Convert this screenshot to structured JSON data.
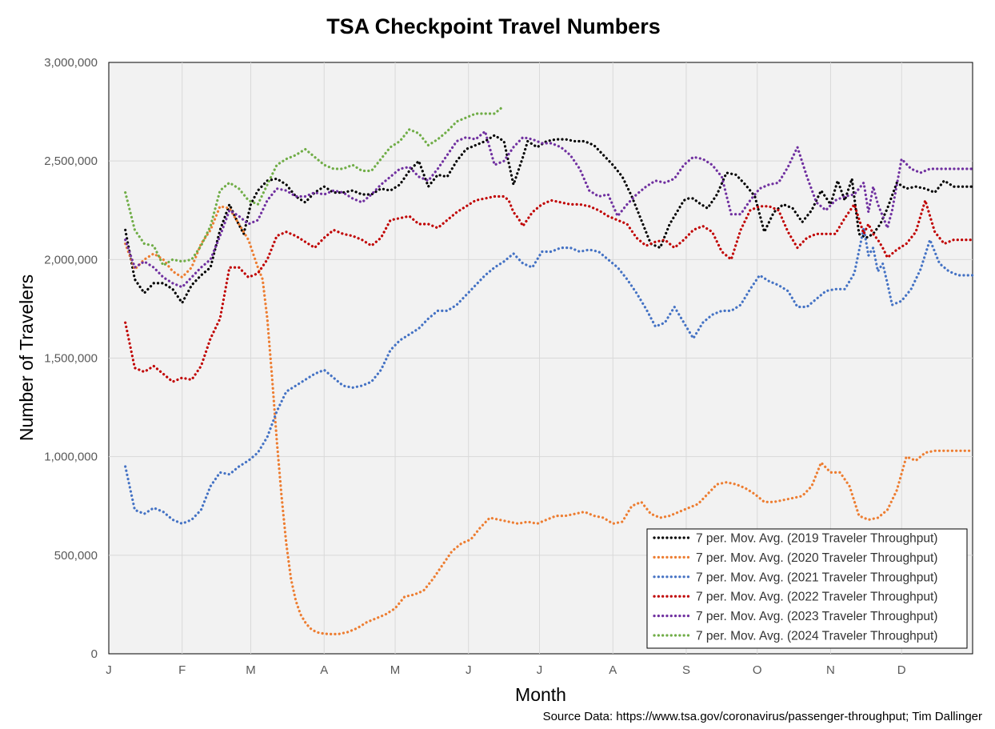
{
  "source_note": "Source Data:  https://www.tsa.gov/coronavirus/passenger-throughput; Tim Dallinger",
  "chart_data": {
    "type": "line",
    "title": "TSA Checkpoint Travel Numbers",
    "xlabel": "Month",
    "ylabel": "Number of Travelers",
    "xlim": [
      1,
      366
    ],
    "ylim": [
      0,
      3000000
    ],
    "y_ticks": [
      0,
      500000,
      1000000,
      1500000,
      2000000,
      2500000,
      3000000
    ],
    "y_tick_labels": [
      "0",
      "500,000",
      "1,000,000",
      "1,500,000",
      "2,000,000",
      "2,500,000",
      "3,000,000"
    ],
    "x_ticks": [
      1,
      32,
      61,
      92,
      122,
      153,
      183,
      214,
      245,
      275,
      306,
      336
    ],
    "x_tick_labels": [
      "J",
      "F",
      "M",
      "A",
      "M",
      "J",
      "J",
      "A",
      "S",
      "O",
      "N",
      "D"
    ],
    "grid": true,
    "legend_position": "bottom-right",
    "series": [
      {
        "name": "7 per. Mov. Avg. (2019 Traveler Throughput)",
        "color": "#000000",
        "x": [
          8,
          12,
          16,
          20,
          24,
          28,
          32,
          36,
          40,
          44,
          48,
          52,
          55,
          58,
          61,
          64,
          68,
          72,
          76,
          80,
          84,
          88,
          92,
          96,
          100,
          104,
          108,
          112,
          116,
          120,
          124,
          128,
          132,
          136,
          140,
          144,
          148,
          152,
          156,
          160,
          164,
          168,
          172,
          176,
          178,
          182,
          186,
          190,
          194,
          198,
          202,
          206,
          210,
          214,
          218,
          222,
          226,
          230,
          234,
          238,
          242,
          244,
          246,
          248,
          250,
          254,
          258,
          262,
          266,
          270,
          274,
          278,
          282,
          286,
          290,
          294,
          298,
          302,
          306,
          309,
          312,
          315,
          318,
          321,
          324,
          327,
          330,
          334,
          338,
          342,
          346,
          350,
          354,
          358,
          362,
          366
        ],
        "y": [
          2150000,
          1900000,
          1830000,
          1880000,
          1880000,
          1850000,
          1780000,
          1870000,
          1920000,
          1960000,
          2150000,
          2280000,
          2200000,
          2130000,
          2280000,
          2350000,
          2400000,
          2410000,
          2380000,
          2320000,
          2290000,
          2340000,
          2370000,
          2340000,
          2340000,
          2350000,
          2330000,
          2330000,
          2360000,
          2350000,
          2380000,
          2450000,
          2500000,
          2370000,
          2430000,
          2420000,
          2500000,
          2560000,
          2580000,
          2600000,
          2630000,
          2600000,
          2380000,
          2520000,
          2600000,
          2570000,
          2600000,
          2610000,
          2610000,
          2600000,
          2600000,
          2580000,
          2530000,
          2480000,
          2420000,
          2320000,
          2200000,
          2080000,
          2060000,
          2180000,
          2260000,
          2300000,
          2310000,
          2310000,
          2290000,
          2260000,
          2330000,
          2440000,
          2430000,
          2380000,
          2320000,
          2140000,
          2240000,
          2280000,
          2260000,
          2190000,
          2250000,
          2350000,
          2280000,
          2400000,
          2300000,
          2410000,
          2130000,
          2110000,
          2130000,
          2180000,
          2260000,
          2390000,
          2360000,
          2370000,
          2360000,
          2340000,
          2400000,
          2370000,
          2370000,
          2370000
        ]
      },
      {
        "name": "7 per. Mov. Avg. (2020 Traveler Throughput)",
        "color": "#ED7D31",
        "x": [
          8,
          12,
          16,
          20,
          24,
          28,
          32,
          36,
          40,
          44,
          48,
          52,
          56,
          60,
          64,
          66,
          68,
          70,
          72,
          74,
          76,
          78,
          80,
          82,
          84,
          86,
          88,
          90,
          94,
          98,
          102,
          106,
          110,
          114,
          118,
          122,
          126,
          130,
          134,
          138,
          142,
          146,
          150,
          154,
          158,
          162,
          166,
          170,
          174,
          178,
          182,
          186,
          190,
          194,
          198,
          202,
          206,
          210,
          214,
          218,
          222,
          226,
          230,
          234,
          238,
          242,
          246,
          250,
          254,
          258,
          262,
          266,
          270,
          274,
          278,
          282,
          286,
          290,
          294,
          298,
          302,
          306,
          310,
          314,
          318,
          322,
          326,
          330,
          334,
          338,
          342,
          346,
          350,
          354,
          358,
          362,
          366
        ],
        "y": [
          2080000,
          1950000,
          2000000,
          2030000,
          2000000,
          1940000,
          1910000,
          1960000,
          2080000,
          2150000,
          2270000,
          2260000,
          2180000,
          2100000,
          1960000,
          1900000,
          1700000,
          1400000,
          1080000,
          800000,
          560000,
          380000,
          270000,
          200000,
          160000,
          130000,
          115000,
          105000,
          100000,
          100000,
          110000,
          130000,
          160000,
          180000,
          200000,
          230000,
          290000,
          300000,
          320000,
          380000,
          450000,
          520000,
          560000,
          580000,
          640000,
          690000,
          680000,
          670000,
          660000,
          670000,
          660000,
          680000,
          700000,
          700000,
          710000,
          720000,
          700000,
          690000,
          660000,
          670000,
          750000,
          770000,
          710000,
          690000,
          700000,
          720000,
          740000,
          760000,
          810000,
          860000,
          870000,
          860000,
          840000,
          810000,
          770000,
          770000,
          780000,
          790000,
          800000,
          850000,
          970000,
          920000,
          920000,
          850000,
          700000,
          680000,
          690000,
          730000,
          830000,
          1000000,
          980000,
          1020000,
          1030000,
          1030000,
          1030000,
          1030000,
          1030000
        ]
      },
      {
        "name": "7 per. Mov. Avg. (2021 Traveler Throughput)",
        "color": "#4472C4",
        "x": [
          8,
          12,
          16,
          20,
          24,
          28,
          32,
          36,
          40,
          44,
          48,
          52,
          56,
          60,
          64,
          68,
          72,
          76,
          80,
          84,
          88,
          92,
          96,
          100,
          104,
          108,
          112,
          116,
          120,
          124,
          128,
          132,
          136,
          140,
          144,
          148,
          152,
          156,
          160,
          164,
          168,
          172,
          176,
          180,
          184,
          188,
          192,
          196,
          200,
          204,
          208,
          212,
          216,
          220,
          224,
          228,
          232,
          236,
          240,
          244,
          248,
          252,
          256,
          260,
          264,
          268,
          272,
          276,
          280,
          284,
          288,
          292,
          296,
          300,
          304,
          308,
          312,
          316,
          320,
          322,
          324,
          326,
          328,
          330,
          332,
          334,
          336,
          340,
          344,
          348,
          352,
          356,
          360,
          364,
          366
        ],
        "y": [
          950000,
          730000,
          710000,
          740000,
          720000,
          680000,
          660000,
          680000,
          730000,
          850000,
          920000,
          910000,
          950000,
          980000,
          1020000,
          1100000,
          1230000,
          1330000,
          1360000,
          1390000,
          1420000,
          1440000,
          1400000,
          1360000,
          1350000,
          1360000,
          1380000,
          1440000,
          1540000,
          1590000,
          1620000,
          1650000,
          1700000,
          1740000,
          1740000,
          1770000,
          1820000,
          1870000,
          1920000,
          1960000,
          1990000,
          2030000,
          1980000,
          1960000,
          2040000,
          2040000,
          2060000,
          2060000,
          2040000,
          2050000,
          2040000,
          2000000,
          1960000,
          1900000,
          1830000,
          1750000,
          1660000,
          1680000,
          1760000,
          1680000,
          1600000,
          1680000,
          1720000,
          1740000,
          1740000,
          1770000,
          1850000,
          1920000,
          1890000,
          1870000,
          1840000,
          1760000,
          1760000,
          1800000,
          1840000,
          1850000,
          1850000,
          1930000,
          2160000,
          2020000,
          2060000,
          1940000,
          1980000,
          1880000,
          1770000,
          1780000,
          1790000,
          1850000,
          1950000,
          2100000,
          1980000,
          1940000,
          1920000,
          1920000,
          1920000
        ]
      },
      {
        "name": "7 per. Mov. Avg. (2022 Traveler Throughput)",
        "color": "#C00000",
        "x": [
          8,
          12,
          16,
          20,
          24,
          28,
          32,
          36,
          40,
          44,
          48,
          52,
          56,
          60,
          64,
          68,
          72,
          76,
          80,
          84,
          88,
          92,
          96,
          100,
          104,
          108,
          112,
          116,
          120,
          124,
          128,
          132,
          136,
          140,
          144,
          148,
          152,
          156,
          160,
          164,
          168,
          170,
          172,
          174,
          176,
          180,
          184,
          188,
          192,
          196,
          200,
          204,
          208,
          212,
          216,
          220,
          224,
          228,
          232,
          236,
          240,
          244,
          248,
          252,
          256,
          260,
          264,
          268,
          272,
          276,
          280,
          284,
          288,
          292,
          296,
          300,
          304,
          308,
          312,
          316,
          320,
          322,
          324,
          326,
          328,
          330,
          334,
          338,
          342,
          346,
          350,
          354,
          358,
          362,
          366
        ],
        "y": [
          1680000,
          1450000,
          1430000,
          1460000,
          1420000,
          1380000,
          1400000,
          1390000,
          1460000,
          1600000,
          1700000,
          1960000,
          1960000,
          1910000,
          1930000,
          2000000,
          2120000,
          2140000,
          2120000,
          2090000,
          2060000,
          2110000,
          2150000,
          2130000,
          2120000,
          2100000,
          2070000,
          2110000,
          2200000,
          2210000,
          2220000,
          2180000,
          2180000,
          2160000,
          2200000,
          2240000,
          2270000,
          2300000,
          2310000,
          2320000,
          2320000,
          2300000,
          2240000,
          2210000,
          2170000,
          2240000,
          2280000,
          2300000,
          2290000,
          2280000,
          2280000,
          2270000,
          2250000,
          2220000,
          2200000,
          2180000,
          2110000,
          2070000,
          2090000,
          2100000,
          2060000,
          2100000,
          2150000,
          2170000,
          2140000,
          2040000,
          2000000,
          2150000,
          2250000,
          2270000,
          2270000,
          2250000,
          2140000,
          2060000,
          2110000,
          2130000,
          2130000,
          2130000,
          2210000,
          2280000,
          2130000,
          2180000,
          2130000,
          2100000,
          2060000,
          2010000,
          2050000,
          2080000,
          2140000,
          2300000,
          2140000,
          2080000,
          2100000,
          2100000,
          2100000
        ]
      },
      {
        "name": "7 per. Mov. Avg. (2023 Traveler Throughput)",
        "color": "#7030A0",
        "x": [
          8,
          12,
          16,
          20,
          24,
          28,
          32,
          36,
          40,
          44,
          48,
          52,
          56,
          60,
          64,
          68,
          72,
          76,
          80,
          84,
          88,
          92,
          96,
          100,
          104,
          108,
          112,
          116,
          120,
          124,
          128,
          132,
          136,
          140,
          144,
          148,
          152,
          156,
          160,
          164,
          168,
          172,
          176,
          180,
          184,
          188,
          192,
          196,
          200,
          204,
          208,
          212,
          216,
          220,
          224,
          228,
          232,
          236,
          240,
          244,
          248,
          252,
          256,
          260,
          264,
          268,
          272,
          276,
          280,
          284,
          288,
          292,
          296,
          300,
          304,
          308,
          312,
          316,
          320,
          322,
          324,
          326,
          328,
          330,
          332,
          334,
          336,
          340,
          344,
          348,
          352,
          356,
          360,
          364,
          366
        ],
        "y": [
          2100000,
          1960000,
          1990000,
          1960000,
          1910000,
          1880000,
          1860000,
          1910000,
          1960000,
          2000000,
          2120000,
          2250000,
          2220000,
          2180000,
          2200000,
          2300000,
          2360000,
          2350000,
          2320000,
          2320000,
          2340000,
          2330000,
          2350000,
          2340000,
          2310000,
          2290000,
          2330000,
          2380000,
          2420000,
          2460000,
          2470000,
          2420000,
          2400000,
          2460000,
          2530000,
          2600000,
          2620000,
          2610000,
          2650000,
          2480000,
          2500000,
          2570000,
          2620000,
          2610000,
          2590000,
          2590000,
          2570000,
          2530000,
          2460000,
          2350000,
          2320000,
          2330000,
          2220000,
          2280000,
          2330000,
          2370000,
          2400000,
          2390000,
          2410000,
          2480000,
          2520000,
          2510000,
          2480000,
          2420000,
          2230000,
          2230000,
          2300000,
          2360000,
          2380000,
          2390000,
          2470000,
          2570000,
          2420000,
          2290000,
          2250000,
          2300000,
          2320000,
          2330000,
          2390000,
          2240000,
          2370000,
          2280000,
          2220000,
          2160000,
          2250000,
          2380000,
          2510000,
          2460000,
          2440000,
          2460000,
          2460000,
          2460000,
          2460000,
          2460000,
          2460000
        ]
      },
      {
        "name": "7 per. Mov. Avg. (2024 Traveler Throughput)",
        "color": "#70AD47",
        "x": [
          8,
          12,
          16,
          20,
          24,
          28,
          32,
          36,
          40,
          44,
          48,
          52,
          56,
          60,
          64,
          68,
          72,
          76,
          80,
          84,
          88,
          92,
          96,
          100,
          104,
          108,
          112,
          116,
          120,
          124,
          128,
          132,
          136,
          140,
          144,
          148,
          152,
          156,
          160,
          164,
          168
        ],
        "y": [
          2340000,
          2150000,
          2080000,
          2070000,
          1970000,
          2000000,
          1990000,
          2000000,
          2070000,
          2170000,
          2350000,
          2390000,
          2360000,
          2300000,
          2280000,
          2380000,
          2480000,
          2510000,
          2530000,
          2560000,
          2520000,
          2480000,
          2460000,
          2460000,
          2480000,
          2450000,
          2450000,
          2510000,
          2570000,
          2600000,
          2660000,
          2640000,
          2580000,
          2610000,
          2650000,
          2700000,
          2720000,
          2740000,
          2740000,
          2740000,
          2780000
        ]
      }
    ]
  }
}
